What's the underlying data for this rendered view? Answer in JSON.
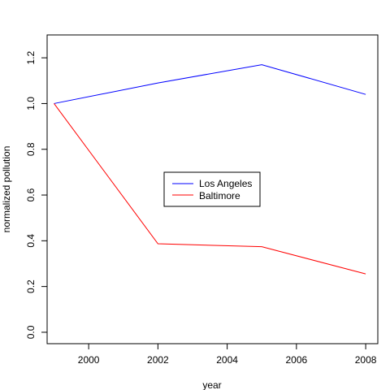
{
  "chart_data": {
    "type": "line",
    "title": "",
    "xlabel": "year",
    "ylabel": "normalized pollution",
    "x": [
      1999,
      2002,
      2005,
      2008
    ],
    "series": [
      {
        "name": "Los Angeles",
        "color": "#0000ff",
        "values": [
          1.0,
          1.09,
          1.17,
          1.04
        ]
      },
      {
        "name": "Baltimore",
        "color": "#ff0000",
        "values": [
          1.0,
          0.387,
          0.374,
          0.255
        ]
      }
    ],
    "xlim": [
      1998.8,
      2008.35
    ],
    "ylim": [
      -0.05,
      1.3
    ],
    "x_ticks": [
      2000,
      2002,
      2004,
      2006,
      2008
    ],
    "y_ticks": [
      0.0,
      0.2,
      0.4,
      0.6,
      0.8,
      1.0,
      1.2
    ],
    "x_tick_labels": [
      "2000",
      "2002",
      "2004",
      "2006",
      "2008"
    ],
    "y_tick_labels": [
      "0.0",
      "0.2",
      "0.4",
      "0.6",
      "0.8",
      "1.0",
      "1.2"
    ],
    "grid": false,
    "legend_position": "center"
  }
}
